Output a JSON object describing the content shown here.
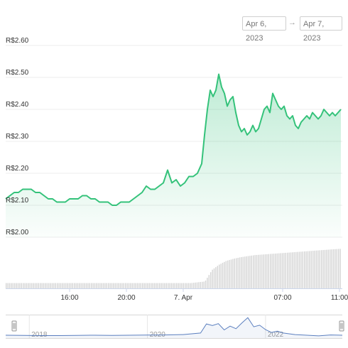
{
  "range": {
    "from": "Apr 6, 2023",
    "arrow": "→",
    "to": "Apr 7, 2023"
  },
  "colors": {
    "line": "#34c27a",
    "navigator": "#5b7fbf",
    "volume": "#d4d4d4",
    "grid": "#ececec"
  },
  "chart_data": {
    "type": "area",
    "title": "",
    "xlabel": "",
    "ylabel": "",
    "currency_prefix": "R$",
    "yticks": [
      "R$2.60",
      "R$2.50",
      "R$2.40",
      "R$2.30",
      "R$2.20",
      "R$2.10",
      "R$2.00"
    ],
    "ytick_values": [
      2.6,
      2.5,
      2.4,
      2.3,
      2.2,
      2.1,
      2.0
    ],
    "ylim": [
      2.0,
      2.6
    ],
    "xlim": [
      11.5,
      35.2
    ],
    "xtick_labels": [
      "16:00",
      "20:00",
      "7. Apr",
      "07:00",
      "11:00"
    ],
    "xtick_values": [
      16,
      20,
      24,
      31,
      35
    ],
    "grid": true,
    "price_series": {
      "x": [
        11.5,
        11.8,
        12.1,
        12.4,
        12.7,
        13.0,
        13.3,
        13.6,
        13.9,
        14.2,
        14.5,
        14.8,
        15.1,
        15.4,
        15.7,
        16.0,
        16.3,
        16.6,
        16.9,
        17.2,
        17.5,
        17.8,
        18.1,
        18.4,
        18.7,
        19.0,
        19.3,
        19.6,
        19.9,
        20.2,
        20.5,
        20.8,
        21.1,
        21.4,
        21.7,
        22.0,
        22.3,
        22.6,
        22.9,
        23.2,
        23.5,
        23.8,
        24.1,
        24.4,
        24.7,
        25.0,
        25.3,
        25.5,
        25.7,
        25.9,
        26.1,
        26.3,
        26.5,
        26.7,
        26.9,
        27.1,
        27.3,
        27.5,
        27.7,
        27.9,
        28.1,
        28.3,
        28.5,
        28.7,
        28.9,
        29.1,
        29.3,
        29.5,
        29.7,
        29.9,
        30.1,
        30.3,
        30.5,
        30.7,
        30.9,
        31.1,
        31.3,
        31.5,
        31.7,
        31.9,
        32.1,
        32.3,
        32.5,
        32.7,
        32.9,
        33.1,
        33.3,
        33.5,
        33.7,
        33.9,
        34.1,
        34.3,
        34.5,
        34.7,
        34.9,
        35.1
      ],
      "y": [
        2.12,
        2.13,
        2.14,
        2.14,
        2.15,
        2.15,
        2.15,
        2.14,
        2.14,
        2.13,
        2.12,
        2.12,
        2.11,
        2.11,
        2.11,
        2.12,
        2.12,
        2.12,
        2.13,
        2.13,
        2.12,
        2.12,
        2.11,
        2.11,
        2.11,
        2.1,
        2.1,
        2.11,
        2.11,
        2.11,
        2.12,
        2.13,
        2.14,
        2.16,
        2.15,
        2.15,
        2.16,
        2.17,
        2.21,
        2.17,
        2.18,
        2.16,
        2.17,
        2.19,
        2.19,
        2.2,
        2.23,
        2.32,
        2.4,
        2.46,
        2.44,
        2.46,
        2.51,
        2.47,
        2.45,
        2.41,
        2.43,
        2.44,
        2.39,
        2.35,
        2.33,
        2.34,
        2.32,
        2.33,
        2.35,
        2.33,
        2.34,
        2.37,
        2.4,
        2.41,
        2.39,
        2.45,
        2.43,
        2.41,
        2.4,
        2.41,
        2.38,
        2.37,
        2.38,
        2.35,
        2.34,
        2.36,
        2.37,
        2.38,
        2.37,
        2.39,
        2.38,
        2.37,
        2.38,
        2.4,
        2.39,
        2.38,
        2.39,
        2.38,
        2.39,
        2.4
      ]
    },
    "volume_series": {
      "x": [
        11.5,
        12.5,
        13.5,
        14.5,
        15.5,
        16.5,
        17.5,
        18.5,
        19.5,
        20.5,
        21.5,
        22.5,
        23.5,
        24.5,
        25.5,
        26.0,
        26.5,
        27.0,
        27.5,
        28.0,
        28.5,
        29.0,
        29.5,
        30.0,
        30.5,
        31.0,
        31.5,
        32.0,
        32.5,
        33.0,
        33.5,
        34.0,
        34.5,
        35.1
      ],
      "y": [
        1,
        1,
        1,
        1,
        1,
        1,
        1,
        1,
        1,
        1,
        1,
        1,
        1,
        1,
        1.3,
        3.5,
        4.5,
        5.2,
        5.6,
        5.9,
        6.1,
        6.3,
        6.4,
        6.5,
        6.6,
        6.7,
        6.8,
        6.9,
        7.0,
        7.1,
        7.2,
        7.3,
        7.4,
        7.5
      ]
    },
    "navigator": {
      "labels": [
        "2018",
        "2020",
        "2022"
      ],
      "label_years": [
        2018,
        2020,
        2022
      ],
      "xlim": [
        2017.6,
        2023.3
      ],
      "x": [
        2017.6,
        2017.9,
        2018.2,
        2018.5,
        2018.8,
        2019.1,
        2019.4,
        2019.7,
        2020.0,
        2020.3,
        2020.6,
        2020.9,
        2021.0,
        2021.1,
        2021.2,
        2021.3,
        2021.4,
        2021.5,
        2021.6,
        2021.7,
        2021.8,
        2021.9,
        2022.0,
        2022.1,
        2022.2,
        2022.3,
        2022.5,
        2022.7,
        2022.9,
        2023.1,
        2023.3
      ],
      "y": [
        0.9,
        0.85,
        0.8,
        0.8,
        0.85,
        0.9,
        0.85,
        0.9,
        0.95,
        1.0,
        1.1,
        1.6,
        4.5,
        4.0,
        4.6,
        2.6,
        3.8,
        3.0,
        4.8,
        6.5,
        3.6,
        4.1,
        2.7,
        1.8,
        2.2,
        1.6,
        1.1,
        0.9,
        0.7,
        1.0,
        0.9
      ]
    }
  }
}
